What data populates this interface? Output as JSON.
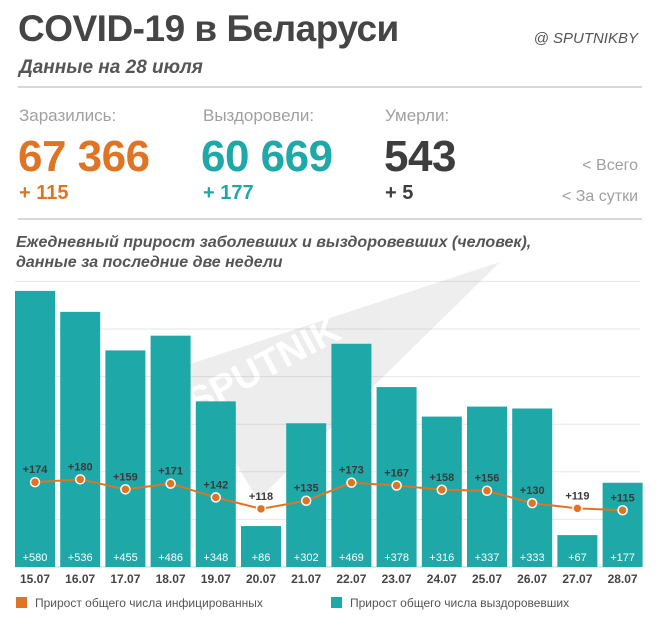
{
  "header": {
    "title": "COVID-19 в Беларуси",
    "subtitle": "Данные на 28 июля",
    "brand": "@ SPUTNIKBY"
  },
  "stats": {
    "infected": {
      "label": "Заразились:",
      "total": "67 366",
      "daily": "+ 115",
      "color": "#e07425"
    },
    "recovered": {
      "label": "Выздоровели:",
      "total": "60 669",
      "daily": "+ 177",
      "color": "#1fa8a8"
    },
    "deaths": {
      "label": "Умерли:",
      "total": "543",
      "daily": "+ 5",
      "color": "#3d3d3d"
    },
    "hint_total": "<  Всего",
    "hint_daily": "<  За сутки"
  },
  "watermark": "SPUTNIK",
  "chart_data": {
    "type": "bar",
    "title": "Ежедневный прирост заболевших и выздоровевших (человек), данные за последние две недели",
    "categories": [
      "15.07",
      "16.07",
      "17.07",
      "18.07",
      "19.07",
      "20.07",
      "21.07",
      "22.07",
      "23.07",
      "24.07",
      "25.07",
      "26.07",
      "27.07",
      "28.07"
    ],
    "series": [
      {
        "name": "Прирост общего числа выздоровевших",
        "type": "bar",
        "color": "#1fa8a8",
        "values": [
          580,
          536,
          455,
          486,
          348,
          86,
          302,
          469,
          378,
          316,
          337,
          333,
          67,
          177
        ],
        "labels": [
          "+580",
          "+536",
          "+455",
          "+486",
          "+348",
          "+86",
          "+302",
          "+469",
          "+378",
          "+316",
          "+337",
          "+333",
          "+67",
          "+177"
        ]
      },
      {
        "name": "Прирост общего числа инфицированных",
        "type": "line",
        "color": "#e07425",
        "values": [
          174,
          180,
          159,
          171,
          142,
          118,
          135,
          173,
          167,
          158,
          156,
          130,
          119,
          115
        ],
        "labels": [
          "+174",
          "+180",
          "+159",
          "+171",
          "+142",
          "+118",
          "+135",
          "+173",
          "+167",
          "+158",
          "+156",
          "+130",
          "+119",
          "+115"
        ]
      }
    ],
    "ylim": [
      0,
      600
    ],
    "grid": true,
    "legend": "bottom"
  },
  "legend": {
    "infected": "Прирост общего числа инфицированных",
    "recovered": "Прирост общего числа выздоровевших"
  }
}
